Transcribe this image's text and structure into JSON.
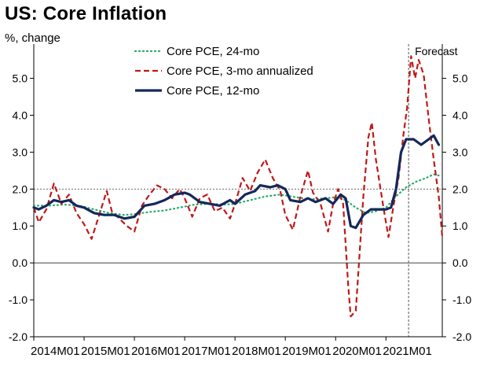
{
  "chart_data": {
    "type": "line",
    "title": "US: Core Inflation",
    "ylabel": "%, change",
    "ylim": [
      -2.0,
      5.8
    ],
    "yticks": [
      -2.0,
      -1.0,
      0.0,
      1.0,
      2.0,
      3.0,
      4.0,
      5.0
    ],
    "ytick_labels": [
      "-2.0",
      "-1.0",
      "0.0",
      "1.0",
      "2.0",
      "3.0",
      "4.0",
      "5.0"
    ],
    "x_start": 2014.0,
    "x_end": 2022.12,
    "xticks": [
      2014,
      2015,
      2016,
      2017,
      2018,
      2019,
      2020,
      2021
    ],
    "xtick_labels": [
      "2014M01",
      "2015M01",
      "2016M01",
      "2017M01",
      "2018M01",
      "2019M01",
      "2020M01",
      "2021M01"
    ],
    "reference_line": 2.0,
    "forecast_start": 2021.45,
    "forecast_label": "Forecast",
    "legend_position": "top-center",
    "series": [
      {
        "name": "Core PCE, 24-mo",
        "style": "dotted",
        "color": "#2aa86a",
        "points": [
          [
            2014.0,
            1.55
          ],
          [
            2014.3,
            1.55
          ],
          [
            2014.6,
            1.58
          ],
          [
            2014.9,
            1.55
          ],
          [
            2015.2,
            1.45
          ],
          [
            2015.5,
            1.35
          ],
          [
            2015.8,
            1.3
          ],
          [
            2016.0,
            1.32
          ],
          [
            2016.3,
            1.38
          ],
          [
            2016.6,
            1.42
          ],
          [
            2016.9,
            1.5
          ],
          [
            2017.2,
            1.58
          ],
          [
            2017.5,
            1.6
          ],
          [
            2017.8,
            1.58
          ],
          [
            2018.0,
            1.6
          ],
          [
            2018.3,
            1.7
          ],
          [
            2018.6,
            1.8
          ],
          [
            2018.9,
            1.85
          ],
          [
            2019.2,
            1.78
          ],
          [
            2019.5,
            1.72
          ],
          [
            2019.8,
            1.75
          ],
          [
            2020.0,
            1.78
          ],
          [
            2020.2,
            1.7
          ],
          [
            2020.4,
            1.5
          ],
          [
            2020.6,
            1.35
          ],
          [
            2020.8,
            1.4
          ],
          [
            2021.0,
            1.5
          ],
          [
            2021.2,
            1.8
          ],
          [
            2021.4,
            2.05
          ],
          [
            2021.6,
            2.2
          ],
          [
            2021.8,
            2.3
          ],
          [
            2021.95,
            2.4
          ],
          [
            2022.1,
            2.35
          ]
        ]
      },
      {
        "name": "Core PCE, 3-mo annualized",
        "style": "dashed",
        "color": "#c01818",
        "points": [
          [
            2014.0,
            1.5
          ],
          [
            2014.1,
            1.1
          ],
          [
            2014.25,
            1.45
          ],
          [
            2014.4,
            2.15
          ],
          [
            2014.55,
            1.6
          ],
          [
            2014.7,
            1.85
          ],
          [
            2014.85,
            1.35
          ],
          [
            2015.0,
            1.05
          ],
          [
            2015.15,
            0.65
          ],
          [
            2015.3,
            1.3
          ],
          [
            2015.45,
            1.95
          ],
          [
            2015.55,
            1.4
          ],
          [
            2015.7,
            1.2
          ],
          [
            2015.85,
            1.0
          ],
          [
            2016.0,
            0.85
          ],
          [
            2016.15,
            1.55
          ],
          [
            2016.3,
            1.85
          ],
          [
            2016.45,
            2.1
          ],
          [
            2016.6,
            2.0
          ],
          [
            2016.75,
            1.75
          ],
          [
            2016.9,
            2.0
          ],
          [
            2017.0,
            1.75
          ],
          [
            2017.15,
            1.25
          ],
          [
            2017.3,
            1.75
          ],
          [
            2017.45,
            1.85
          ],
          [
            2017.6,
            1.4
          ],
          [
            2017.75,
            1.5
          ],
          [
            2017.9,
            1.2
          ],
          [
            2018.0,
            1.6
          ],
          [
            2018.15,
            2.3
          ],
          [
            2018.3,
            1.95
          ],
          [
            2018.45,
            2.45
          ],
          [
            2018.6,
            2.8
          ],
          [
            2018.75,
            2.3
          ],
          [
            2018.9,
            1.95
          ],
          [
            2019.0,
            1.3
          ],
          [
            2019.15,
            0.9
          ],
          [
            2019.3,
            1.8
          ],
          [
            2019.45,
            2.5
          ],
          [
            2019.55,
            1.9
          ],
          [
            2019.7,
            1.6
          ],
          [
            2019.85,
            0.85
          ],
          [
            2019.95,
            1.6
          ],
          [
            2020.05,
            2.0
          ],
          [
            2020.15,
            1.6
          ],
          [
            2020.25,
            -0.6
          ],
          [
            2020.3,
            -1.45
          ],
          [
            2020.4,
            -1.3
          ],
          [
            2020.55,
            1.8
          ],
          [
            2020.65,
            3.4
          ],
          [
            2020.72,
            3.8
          ],
          [
            2020.8,
            2.8
          ],
          [
            2020.95,
            1.5
          ],
          [
            2021.05,
            0.7
          ],
          [
            2021.15,
            1.55
          ],
          [
            2021.25,
            2.3
          ],
          [
            2021.35,
            3.5
          ],
          [
            2021.42,
            4.2
          ],
          [
            2021.5,
            5.6
          ],
          [
            2021.58,
            5.0
          ],
          [
            2021.65,
            5.5
          ],
          [
            2021.75,
            5.1
          ],
          [
            2021.85,
            3.9
          ],
          [
            2021.95,
            2.8
          ],
          [
            2022.05,
            1.8
          ],
          [
            2022.12,
            0.7
          ]
        ]
      },
      {
        "name": "Core PCE, 12-mo",
        "style": "solid",
        "color": "#14285a",
        "points": [
          [
            2014.0,
            1.5
          ],
          [
            2014.1,
            1.45
          ],
          [
            2014.25,
            1.55
          ],
          [
            2014.4,
            1.7
          ],
          [
            2014.55,
            1.65
          ],
          [
            2014.7,
            1.7
          ],
          [
            2014.85,
            1.55
          ],
          [
            2015.0,
            1.5
          ],
          [
            2015.2,
            1.35
          ],
          [
            2015.4,
            1.3
          ],
          [
            2015.6,
            1.3
          ],
          [
            2015.8,
            1.2
          ],
          [
            2016.0,
            1.25
          ],
          [
            2016.2,
            1.55
          ],
          [
            2016.4,
            1.6
          ],
          [
            2016.6,
            1.7
          ],
          [
            2016.8,
            1.85
          ],
          [
            2017.0,
            1.9
          ],
          [
            2017.1,
            1.85
          ],
          [
            2017.3,
            1.65
          ],
          [
            2017.5,
            1.6
          ],
          [
            2017.7,
            1.55
          ],
          [
            2017.9,
            1.7
          ],
          [
            2018.0,
            1.6
          ],
          [
            2018.2,
            1.85
          ],
          [
            2018.4,
            1.95
          ],
          [
            2018.5,
            2.1
          ],
          [
            2018.7,
            2.05
          ],
          [
            2018.85,
            2.1
          ],
          [
            2019.0,
            2.0
          ],
          [
            2019.1,
            1.7
          ],
          [
            2019.3,
            1.65
          ],
          [
            2019.45,
            1.75
          ],
          [
            2019.6,
            1.65
          ],
          [
            2019.8,
            1.75
          ],
          [
            2019.95,
            1.6
          ],
          [
            2020.1,
            1.85
          ],
          [
            2020.2,
            1.75
          ],
          [
            2020.3,
            1.0
          ],
          [
            2020.4,
            0.95
          ],
          [
            2020.55,
            1.3
          ],
          [
            2020.7,
            1.45
          ],
          [
            2020.85,
            1.45
          ],
          [
            2021.0,
            1.45
          ],
          [
            2021.1,
            1.5
          ],
          [
            2021.2,
            2.0
          ],
          [
            2021.3,
            3.0
          ],
          [
            2021.4,
            3.35
          ],
          [
            2021.55,
            3.35
          ],
          [
            2021.7,
            3.2
          ],
          [
            2021.85,
            3.35
          ],
          [
            2021.95,
            3.45
          ],
          [
            2022.05,
            3.2
          ]
        ]
      }
    ]
  },
  "colors": {
    "background": "#ffffff",
    "axis": "#000000",
    "reference_line": "#555555",
    "forecast_line": "#555555",
    "zero_line": "#000000"
  }
}
